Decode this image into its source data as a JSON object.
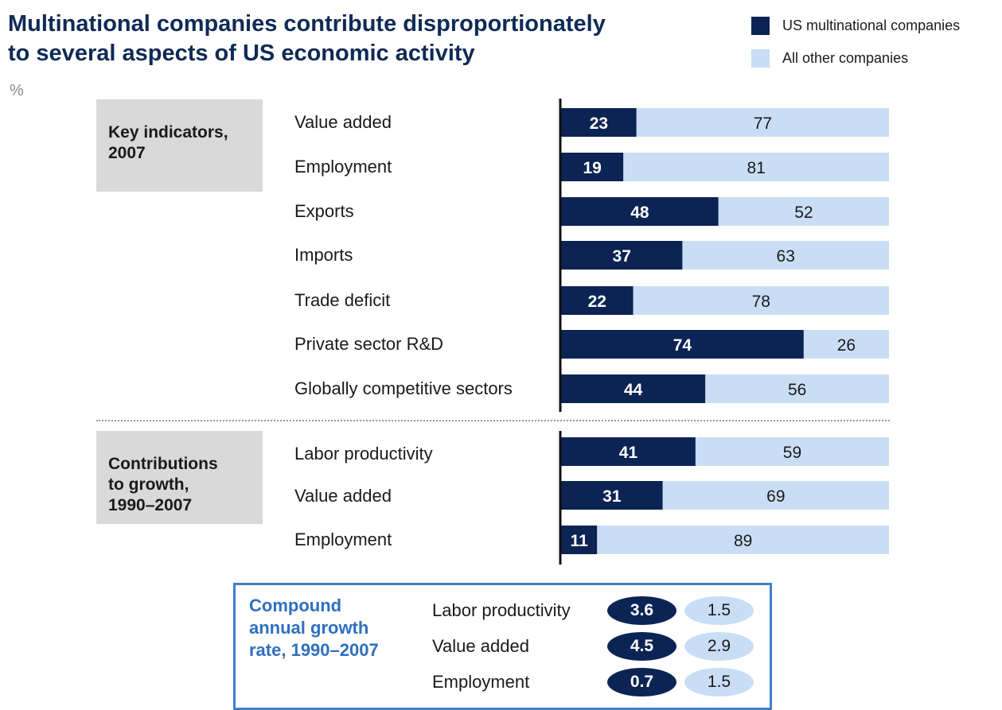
{
  "title_lines": [
    "Multinational companies contribute disproportionately",
    "to several aspects of US economic activity"
  ],
  "unit": "%",
  "colors": {
    "mnc": "#0c2454",
    "other": "#c9def5",
    "axis": "#111111",
    "accent": "#2f6fbf"
  },
  "legend": [
    {
      "label": "US multinational companies",
      "color": "#0c2454"
    },
    {
      "label": "All other companies",
      "color": "#c9def5"
    }
  ],
  "groups": [
    {
      "label": "Key indicators,\n2007"
    },
    {
      "label": "Contributions\nto growth,\n1990–2007"
    }
  ],
  "chart_data": {
    "type": "bar",
    "orientation": "horizontal",
    "stacked": true,
    "xlim": [
      0,
      100
    ],
    "categories": [
      "Value added",
      "Employment",
      "Exports",
      "Imports",
      "Trade deficit",
      "Private sector R&D",
      "Globally competitive sectors",
      "Labor productivity",
      "Value added",
      "Employment"
    ],
    "series": [
      {
        "name": "US multinational companies",
        "values": [
          23,
          19,
          48,
          37,
          22,
          74,
          44,
          41,
          31,
          11
        ]
      },
      {
        "name": "All other companies",
        "values": [
          77,
          81,
          52,
          63,
          78,
          26,
          56,
          59,
          69,
          89
        ]
      }
    ]
  },
  "cagr": {
    "title": "Compound\nannual growth\nrate, 1990–2007",
    "rows": [
      {
        "label": "Labor productivity",
        "mnc": "3.6",
        "other": "1.5"
      },
      {
        "label": "Value added",
        "mnc": "4.5",
        "other": "2.9"
      },
      {
        "label": "Employment",
        "mnc": "0.7",
        "other": "1.5"
      }
    ]
  }
}
